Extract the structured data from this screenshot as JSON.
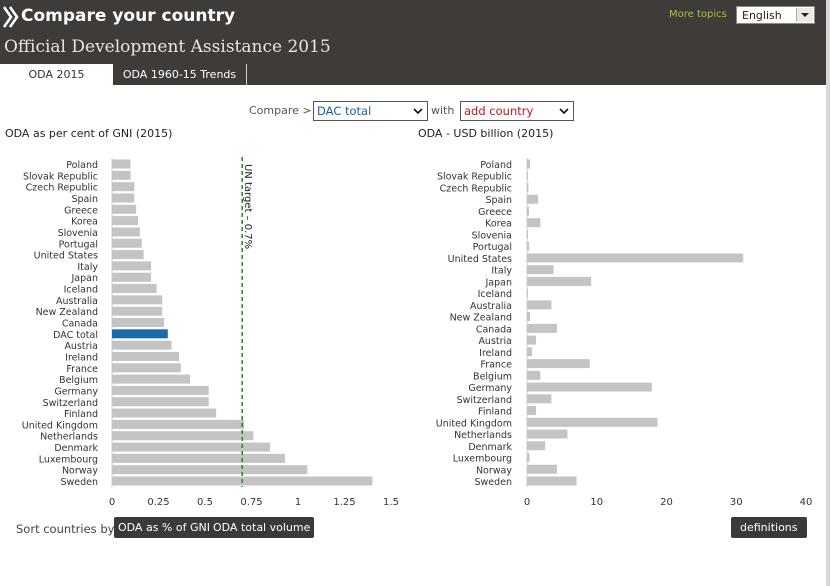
{
  "header": {
    "app_title": "Compare your country",
    "more_topics": "More topics",
    "language": "English",
    "page_title": "Official Development Assistance 2015"
  },
  "tabs": [
    {
      "label": "ODA 2015",
      "active": true
    },
    {
      "label": "ODA 1960-15 Trends",
      "active": false
    }
  ],
  "compare": {
    "label": "Compare >",
    "selected": "DAC total",
    "with_label": "with",
    "add_placeholder": "add country"
  },
  "colors": {
    "header_bg": "#3f3b39",
    "bar": "#c4c4c4",
    "highlight": "#1a69ad",
    "target_line": "#2e8b2e",
    "accent_green": "#a7c43a",
    "add_country_red": "#c0161f"
  },
  "footer": {
    "sort_label": "Sort countries by",
    "sort_gni": "ODA as % of GNI",
    "sort_volume": "ODA total volume",
    "definitions": "definitions"
  },
  "chart_data": [
    {
      "type": "bar",
      "orientation": "horizontal",
      "title": "ODA as per cent of GNI (2015)",
      "categories": [
        "Poland",
        "Slovak Republic",
        "Czech Republic",
        "Spain",
        "Greece",
        "Korea",
        "Slovenia",
        "Portugal",
        "United States",
        "Italy",
        "Japan",
        "Iceland",
        "Australia",
        "New Zealand",
        "Canada",
        "DAC total",
        "Austria",
        "Ireland",
        "France",
        "Belgium",
        "Germany",
        "Switzerland",
        "Finland",
        "United Kingdom",
        "Netherlands",
        "Denmark",
        "Luxembourg",
        "Norway",
        "Sweden"
      ],
      "values": [
        0.1,
        0.1,
        0.12,
        0.12,
        0.13,
        0.14,
        0.15,
        0.16,
        0.17,
        0.21,
        0.21,
        0.24,
        0.27,
        0.27,
        0.28,
        0.3,
        0.32,
        0.36,
        0.37,
        0.42,
        0.52,
        0.52,
        0.56,
        0.71,
        0.76,
        0.85,
        0.93,
        1.05,
        1.4
      ],
      "highlight": "DAC total",
      "xlim": [
        0,
        1.5
      ],
      "xticks": [
        "0",
        "0.25",
        "0.5",
        "0.75",
        "1",
        "1.25",
        "1.5"
      ],
      "xtick_values": [
        0,
        0.25,
        0.5,
        0.75,
        1,
        1.25,
        1.5
      ],
      "reference_line": {
        "value": 0.7,
        "label": "UN target – 0.7%"
      }
    },
    {
      "type": "bar",
      "orientation": "horizontal",
      "title": "ODA - USD billion (2015)",
      "categories": [
        "Poland",
        "Slovak Republic",
        "Czech Republic",
        "Spain",
        "Greece",
        "Korea",
        "Slovenia",
        "Portugal",
        "United States",
        "Italy",
        "Japan",
        "Iceland",
        "Australia",
        "New Zealand",
        "Canada",
        "Austria",
        "Ireland",
        "France",
        "Belgium",
        "Germany",
        "Switzerland",
        "Finland",
        "United Kingdom",
        "Netherlands",
        "Denmark",
        "Luxembourg",
        "Norway",
        "Sweden"
      ],
      "values": [
        0.44,
        0.09,
        0.2,
        1.6,
        0.28,
        1.9,
        0.06,
        0.31,
        31.0,
        3.8,
        9.2,
        0.04,
        3.5,
        0.44,
        4.3,
        1.3,
        0.72,
        9.0,
        1.9,
        17.9,
        3.5,
        1.3,
        18.7,
        5.8,
        2.6,
        0.36,
        4.3,
        7.1
      ],
      "xlim": [
        0,
        40
      ],
      "xticks": [
        "0",
        "10",
        "20",
        "30",
        "40"
      ],
      "xtick_values": [
        0,
        10,
        20,
        30,
        40
      ]
    }
  ]
}
